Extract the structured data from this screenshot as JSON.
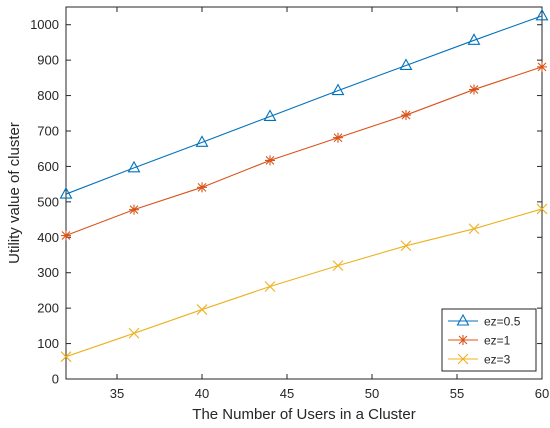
{
  "chart_data": {
    "type": "line",
    "title": "",
    "xlabel": "The Number of Users in a Cluster",
    "ylabel": "Utility value of cluster",
    "xlim": [
      32,
      60
    ],
    "ylim": [
      0,
      1050
    ],
    "xticks": [
      35,
      40,
      45,
      50,
      55,
      60
    ],
    "yticks": [
      0,
      100,
      200,
      300,
      400,
      500,
      600,
      700,
      800,
      900,
      1000
    ],
    "grid": false,
    "legend_position": "bottom-right",
    "x": [
      32,
      36,
      40,
      44,
      48,
      52,
      56,
      60
    ],
    "series": [
      {
        "name": "ez=0.5",
        "marker": "triangle",
        "color": "#0072BD",
        "values": [
          522,
          596,
          668,
          741,
          814,
          885,
          956,
          1025
        ]
      },
      {
        "name": "ez=1",
        "marker": "star",
        "color": "#D95319",
        "values": [
          405,
          478,
          541,
          617,
          681,
          745,
          817,
          881
        ]
      },
      {
        "name": "ez=3",
        "marker": "x",
        "color": "#EDB120",
        "values": [
          63,
          129,
          196,
          261,
          320,
          376,
          424,
          480
        ]
      }
    ]
  }
}
